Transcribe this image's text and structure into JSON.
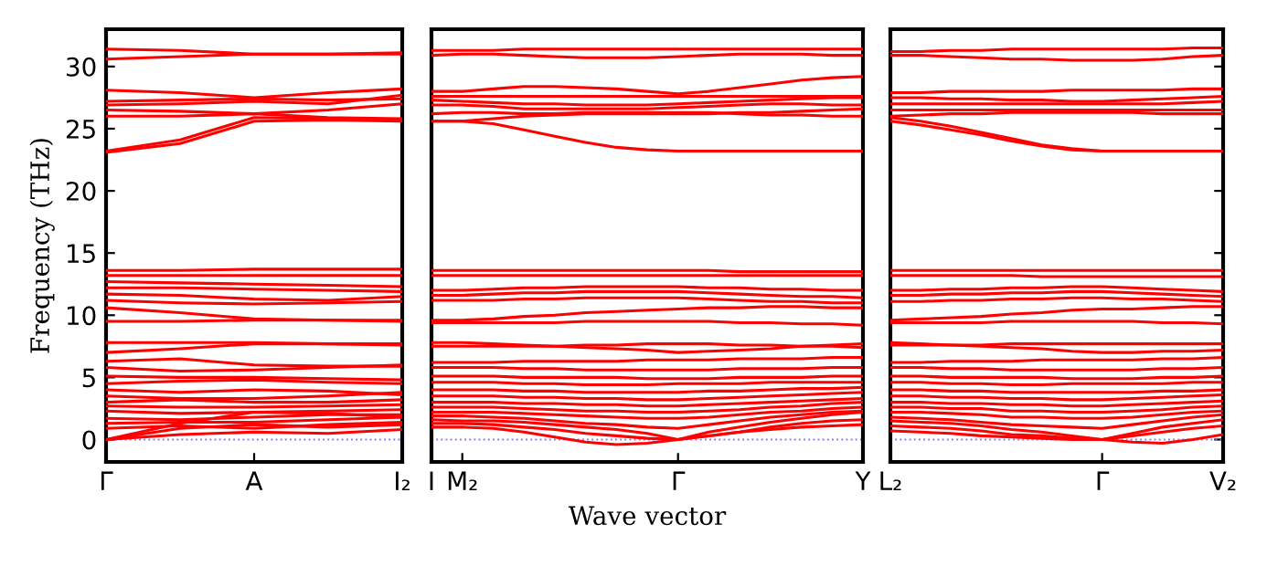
{
  "chart_data": [
    {
      "type": "line",
      "ylabel": "Frequency (THz)",
      "categories": [
        "Γ",
        null,
        "A",
        null,
        "I₂"
      ],
      "ylim": [
        -1.8,
        33
      ],
      "yticks": [
        0,
        5,
        10,
        15,
        20,
        25,
        30
      ],
      "marker": "none",
      "line_style": "solid",
      "ref_lines": [
        {
          "axis": "y",
          "value": 0,
          "color": "#8080ff",
          "line_style": "dotted"
        }
      ],
      "series": [
        {
          "color": "#ff0000",
          "values": [
            31.4,
            31.3,
            31.0,
            31.0,
            31.0
          ]
        },
        {
          "color": "#ff0000",
          "values": [
            30.6,
            30.8,
            31.0,
            31.0,
            31.1
          ]
        },
        {
          "color": "#ff0000",
          "values": [
            28.1,
            27.9,
            27.5,
            27.9,
            28.2
          ]
        },
        {
          "color": "#ff0000",
          "values": [
            27.2,
            27.3,
            27.4,
            27.3,
            27.4
          ]
        },
        {
          "color": "#ff0000",
          "values": [
            26.9,
            27.0,
            27.2,
            27.0,
            27.7
          ]
        },
        {
          "color": "#ff0000",
          "values": [
            26.5,
            26.4,
            26.2,
            26.5,
            27.0
          ]
        },
        {
          "color": "#ff0000",
          "values": [
            26.0,
            26.0,
            26.2,
            25.9,
            25.8
          ]
        },
        {
          "color": "#ff0000",
          "values": [
            23.1,
            23.8,
            25.6,
            25.7,
            25.6
          ]
        },
        {
          "color": "#ff0000",
          "values": [
            23.2,
            24.1,
            25.9,
            25.8,
            25.7
          ]
        },
        {
          "color": "#ff0000",
          "values": [
            13.6,
            13.6,
            13.7,
            13.7,
            13.7
          ]
        },
        {
          "color": "#ff0000",
          "values": [
            13.2,
            13.2,
            13.2,
            13.2,
            13.2
          ]
        },
        {
          "color": "#ff0000",
          "values": [
            12.7,
            12.6,
            12.5,
            12.4,
            12.3
          ]
        },
        {
          "color": "#ff0000",
          "values": [
            12.2,
            12.2,
            12.1,
            12.0,
            11.9
          ]
        },
        {
          "color": "#ff0000",
          "values": [
            11.7,
            11.6,
            11.3,
            11.2,
            11.5
          ]
        },
        {
          "color": "#ff0000",
          "values": [
            11.2,
            11.0,
            10.9,
            11.0,
            11.1
          ]
        },
        {
          "color": "#ff0000",
          "values": [
            10.6,
            10.2,
            9.7,
            9.6,
            9.6
          ]
        },
        {
          "color": "#ff0000",
          "values": [
            9.5,
            9.5,
            9.6,
            9.6,
            9.5
          ]
        },
        {
          "color": "#ff0000",
          "values": [
            7.8,
            7.8,
            7.8,
            7.7,
            7.7
          ]
        },
        {
          "color": "#ff0000",
          "values": [
            7.0,
            7.3,
            7.7,
            7.7,
            7.6
          ]
        },
        {
          "color": "#ff0000",
          "values": [
            6.3,
            6.5,
            6.0,
            5.9,
            5.9
          ]
        },
        {
          "color": "#ff0000",
          "values": [
            5.8,
            5.5,
            5.6,
            5.8,
            6.0
          ]
        },
        {
          "color": "#ff0000",
          "values": [
            5.1,
            5.0,
            5.0,
            4.9,
            4.8
          ]
        },
        {
          "color": "#ff0000",
          "values": [
            4.5,
            4.7,
            4.8,
            4.6,
            4.5
          ]
        },
        {
          "color": "#ff0000",
          "values": [
            4.0,
            3.8,
            4.0,
            3.9,
            3.6
          ]
        },
        {
          "color": "#ff0000",
          "values": [
            3.5,
            3.3,
            3.3,
            3.5,
            3.8
          ]
        },
        {
          "color": "#ff0000",
          "values": [
            3.0,
            3.2,
            3.0,
            3.0,
            3.2
          ]
        },
        {
          "color": "#ff0000",
          "values": [
            2.7,
            2.6,
            2.6,
            2.7,
            2.8
          ]
        },
        {
          "color": "#ff0000",
          "values": [
            2.3,
            2.1,
            2.2,
            2.3,
            2.4
          ]
        },
        {
          "color": "#ff0000",
          "values": [
            1.7,
            1.6,
            1.8,
            2.0,
            2.0
          ]
        },
        {
          "color": "#ff0000",
          "values": [
            1.3,
            1.4,
            1.4,
            1.6,
            1.8
          ]
        },
        {
          "color": "#ff0000",
          "values": [
            0.9,
            1.1,
            0.9,
            1.2,
            1.4
          ]
        },
        {
          "color": "#ff0000",
          "values": [
            0,
            1.3,
            2.2,
            2.1,
            1.8
          ]
        },
        {
          "color": "#ff0000",
          "values": [
            0,
            0.9,
            1.2,
            1.0,
            1.2
          ]
        },
        {
          "color": "#ff0000",
          "values": [
            0,
            0.4,
            0.6,
            0.5,
            0.8
          ]
        }
      ]
    },
    {
      "type": "line",
      "xlabel": "Wave vector",
      "categories": [
        "I",
        "M₂",
        null,
        null,
        null,
        null,
        null,
        null,
        "Γ",
        null,
        null,
        null,
        null,
        null,
        "Y"
      ],
      "ylim": [
        -1.8,
        33
      ],
      "tick_labels": "x",
      "marker": "none",
      "line_style": "solid",
      "ref_lines": [
        {
          "axis": "y",
          "value": 0,
          "color": "#8080ff",
          "line_style": "dotted"
        }
      ],
      "series": [
        {
          "color": "#ff0000",
          "values": [
            31.3,
            31.3,
            31.3,
            31.4,
            31.4,
            31.4,
            31.4,
            31.4,
            31.4,
            31.4,
            31.4,
            31.4,
            31.4,
            31.4,
            31.4
          ]
        },
        {
          "color": "#ff0000",
          "values": [
            30.9,
            31.0,
            31.0,
            30.9,
            30.8,
            30.7,
            30.7,
            30.7,
            30.8,
            30.9,
            31.0,
            31.0,
            31.0,
            30.9,
            30.9
          ]
        },
        {
          "color": "#ff0000",
          "values": [
            28.0,
            28.0,
            28.2,
            28.4,
            28.4,
            28.3,
            28.2,
            28.0,
            27.8,
            28.0,
            28.3,
            28.6,
            28.9,
            29.1,
            29.2
          ]
        },
        {
          "color": "#ff0000",
          "values": [
            27.6,
            27.6,
            27.6,
            27.6,
            27.6,
            27.6,
            27.6,
            27.6,
            27.6,
            27.6,
            27.6,
            27.6,
            27.6,
            27.6,
            27.6
          ]
        },
        {
          "color": "#ff0000",
          "values": [
            27.3,
            27.2,
            27.1,
            27.0,
            27.0,
            26.9,
            26.9,
            26.9,
            27.0,
            27.1,
            27.2,
            27.3,
            27.4,
            27.5,
            27.5
          ]
        },
        {
          "color": "#ff0000",
          "values": [
            26.9,
            26.9,
            26.8,
            26.6,
            26.6,
            26.6,
            26.6,
            26.6,
            26.7,
            26.8,
            26.9,
            27.0,
            27.0,
            26.9,
            26.9
          ]
        },
        {
          "color": "#ff0000",
          "values": [
            26.2,
            26.3,
            26.3,
            26.2,
            26.2,
            26.3,
            26.3,
            26.3,
            26.3,
            26.3,
            26.2,
            26.1,
            26.1,
            26.0,
            26.0
          ]
        },
        {
          "color": "#ff0000",
          "values": [
            25.6,
            25.6,
            25.8,
            26.0,
            26.1,
            26.2,
            26.2,
            26.2,
            26.2,
            26.2,
            26.3,
            26.3,
            26.4,
            26.5,
            26.6
          ]
        },
        {
          "color": "#ff0000",
          "values": [
            25.6,
            25.6,
            25.4,
            24.9,
            24.4,
            23.9,
            23.5,
            23.3,
            23.2,
            23.2,
            23.2,
            23.2,
            23.2,
            23.2,
            23.2
          ]
        },
        {
          "color": "#ff0000",
          "values": [
            13.6,
            13.6,
            13.6,
            13.6,
            13.6,
            13.6,
            13.6,
            13.6,
            13.6,
            13.6,
            13.5,
            13.5,
            13.5,
            13.5,
            13.5
          ]
        },
        {
          "color": "#ff0000",
          "values": [
            13.2,
            13.2,
            13.2,
            13.2,
            13.2,
            13.2,
            13.2,
            13.2,
            13.2,
            13.2,
            13.2,
            13.2,
            13.2,
            13.2,
            13.2
          ]
        },
        {
          "color": "#ff0000",
          "values": [
            12.0,
            12.0,
            12.1,
            12.2,
            12.2,
            12.3,
            12.3,
            12.3,
            12.3,
            12.2,
            12.2,
            12.1,
            12.1,
            12.0,
            12.0
          ]
        },
        {
          "color": "#ff0000",
          "values": [
            11.6,
            11.6,
            11.7,
            11.8,
            11.8,
            11.9,
            11.9,
            11.9,
            11.9,
            11.8,
            11.7,
            11.6,
            11.5,
            11.5,
            11.4
          ]
        },
        {
          "color": "#ff0000",
          "values": [
            11.2,
            11.2,
            11.2,
            11.3,
            11.3,
            11.4,
            11.4,
            11.4,
            11.4,
            11.3,
            11.2,
            11.1,
            11.1,
            11.0,
            11.0
          ]
        },
        {
          "color": "#ff0000",
          "values": [
            9.6,
            9.6,
            9.7,
            9.9,
            10.0,
            10.2,
            10.3,
            10.4,
            10.5,
            10.6,
            10.6,
            10.7,
            10.7,
            10.6,
            10.6
          ]
        },
        {
          "color": "#ff0000",
          "values": [
            9.4,
            9.4,
            9.4,
            9.4,
            9.4,
            9.5,
            9.5,
            9.5,
            9.5,
            9.5,
            9.4,
            9.4,
            9.3,
            9.3,
            9.2
          ]
        },
        {
          "color": "#ff0000",
          "values": [
            7.8,
            7.8,
            7.7,
            7.6,
            7.5,
            7.4,
            7.3,
            7.2,
            7.0,
            7.1,
            7.2,
            7.3,
            7.5,
            7.6,
            7.7
          ]
        },
        {
          "color": "#ff0000",
          "values": [
            7.5,
            7.5,
            7.5,
            7.5,
            7.5,
            7.6,
            7.6,
            7.7,
            7.7,
            7.7,
            7.6,
            7.6,
            7.5,
            7.5,
            7.4
          ]
        },
        {
          "color": "#ff0000",
          "values": [
            6.2,
            6.2,
            6.2,
            6.3,
            6.3,
            6.3,
            6.3,
            6.4,
            6.4,
            6.4,
            6.5,
            6.5,
            6.5,
            6.6,
            6.6
          ]
        },
        {
          "color": "#ff0000",
          "values": [
            5.8,
            5.8,
            5.8,
            5.7,
            5.7,
            5.6,
            5.6,
            5.6,
            5.6,
            5.6,
            5.7,
            5.7,
            5.7,
            5.8,
            5.8
          ]
        },
        {
          "color": "#ff0000",
          "values": [
            5.1,
            5.1,
            5.1,
            5.0,
            5.0,
            5.0,
            5.0,
            4.9,
            4.9,
            4.9,
            5.0,
            5.0,
            5.0,
            5.1,
            5.1
          ]
        },
        {
          "color": "#ff0000",
          "values": [
            4.6,
            4.6,
            4.6,
            4.5,
            4.5,
            4.4,
            4.4,
            4.4,
            4.5,
            4.5,
            4.5,
            4.6,
            4.6,
            4.6,
            4.6
          ]
        },
        {
          "color": "#ff0000",
          "values": [
            4.0,
            4.0,
            4.0,
            3.9,
            3.9,
            3.8,
            3.8,
            3.8,
            3.8,
            3.9,
            3.9,
            4.0,
            4.1,
            4.1,
            4.2
          ]
        },
        {
          "color": "#ff0000",
          "values": [
            3.5,
            3.5,
            3.5,
            3.4,
            3.4,
            3.3,
            3.3,
            3.2,
            3.2,
            3.3,
            3.4,
            3.5,
            3.6,
            3.7,
            3.8
          ]
        },
        {
          "color": "#ff0000",
          "values": [
            3.0,
            3.0,
            3.0,
            2.9,
            2.9,
            2.8,
            2.8,
            2.7,
            2.7,
            2.8,
            2.9,
            3.0,
            3.1,
            3.2,
            3.3
          ]
        },
        {
          "color": "#ff0000",
          "values": [
            2.6,
            2.6,
            2.6,
            2.5,
            2.4,
            2.3,
            2.3,
            2.2,
            2.2,
            2.3,
            2.4,
            2.6,
            2.7,
            2.9,
            3.0
          ]
        },
        {
          "color": "#ff0000",
          "values": [
            2.2,
            2.2,
            2.2,
            2.1,
            2.0,
            1.9,
            1.8,
            1.7,
            1.7,
            1.8,
            2.0,
            2.2,
            2.3,
            2.5,
            2.6
          ]
        },
        {
          "color": "#ff0000",
          "values": [
            1.9,
            1.9,
            1.8,
            1.7,
            1.5,
            1.3,
            1.2,
            1.0,
            0.9,
            1.2,
            1.5,
            1.8,
            2.0,
            2.2,
            2.3
          ]
        },
        {
          "color": "#ff0000",
          "values": [
            1.6,
            1.5,
            1.5,
            1.4,
            1.2,
            1.0,
            0.8,
            0.5,
            0.0,
            0.6,
            1.0,
            1.4,
            1.7,
            2.0,
            2.2
          ]
        },
        {
          "color": "#ff0000",
          "values": [
            1.3,
            1.3,
            1.2,
            1.0,
            0.8,
            0.5,
            0.3,
            0.1,
            0.0,
            0.3,
            0.6,
            0.8,
            1.0,
            1.1,
            1.2
          ]
        },
        {
          "color": "#ff0000",
          "values": [
            1.0,
            1.0,
            0.9,
            0.6,
            0.2,
            -0.2,
            -0.4,
            -0.3,
            0.0,
            0.3,
            0.6,
            1.0,
            1.3,
            1.5,
            1.6
          ]
        }
      ]
    },
    {
      "type": "line",
      "categories": [
        "L₂",
        null,
        null,
        null,
        null,
        null,
        null,
        "Γ",
        null,
        null,
        null,
        "V₂"
      ],
      "ylim": [
        -1.8,
        33
      ],
      "tick_labels": "x",
      "marker": "none",
      "line_style": "solid",
      "ref_lines": [
        {
          "axis": "y",
          "value": 0,
          "color": "#8080ff",
          "line_style": "dotted"
        }
      ],
      "series": [
        {
          "color": "#ff0000",
          "values": [
            31.2,
            31.2,
            31.3,
            31.3,
            31.4,
            31.4,
            31.4,
            31.4,
            31.4,
            31.4,
            31.5,
            31.5
          ]
        },
        {
          "color": "#ff0000",
          "values": [
            30.9,
            30.9,
            30.8,
            30.7,
            30.6,
            30.6,
            30.5,
            30.5,
            30.5,
            30.6,
            30.8,
            30.9
          ]
        },
        {
          "color": "#ff0000",
          "values": [
            27.9,
            27.9,
            28.0,
            28.0,
            28.0,
            28.0,
            28.1,
            28.1,
            28.1,
            28.1,
            28.2,
            28.2
          ]
        },
        {
          "color": "#ff0000",
          "values": [
            27.5,
            27.5,
            27.4,
            27.4,
            27.3,
            27.3,
            27.2,
            27.2,
            27.3,
            27.4,
            27.5,
            27.6
          ]
        },
        {
          "color": "#ff0000",
          "values": [
            27.0,
            27.0,
            27.0,
            27.0,
            27.0,
            27.0,
            27.0,
            27.0,
            27.0,
            27.0,
            27.1,
            27.2
          ]
        },
        {
          "color": "#ff0000",
          "values": [
            26.5,
            26.5,
            26.5,
            26.5,
            26.5,
            26.5,
            26.5,
            26.5,
            26.5,
            26.5,
            26.5,
            26.5
          ]
        },
        {
          "color": "#ff0000",
          "values": [
            26.0,
            26.1,
            26.2,
            26.2,
            26.3,
            26.3,
            26.3,
            26.3,
            26.3,
            26.2,
            26.2,
            26.2
          ]
        },
        {
          "color": "#ff0000",
          "values": [
            25.9,
            25.6,
            25.2,
            24.7,
            24.2,
            23.7,
            23.4,
            23.2,
            23.2,
            23.2,
            23.2,
            23.2
          ]
        },
        {
          "color": "#ff0000",
          "values": [
            25.6,
            25.3,
            24.9,
            24.5,
            24.0,
            23.6,
            23.3,
            23.2,
            23.2,
            23.2,
            23.2,
            23.2
          ]
        },
        {
          "color": "#ff0000",
          "values": [
            13.6,
            13.6,
            13.6,
            13.6,
            13.6,
            13.6,
            13.6,
            13.6,
            13.6,
            13.6,
            13.6,
            13.6
          ]
        },
        {
          "color": "#ff0000",
          "values": [
            13.2,
            13.2,
            13.2,
            13.2,
            13.2,
            13.1,
            13.1,
            13.1,
            13.1,
            13.1,
            13.1,
            13.1
          ]
        },
        {
          "color": "#ff0000",
          "values": [
            12.0,
            12.0,
            12.1,
            12.1,
            12.2,
            12.2,
            12.3,
            12.3,
            12.2,
            12.1,
            12.0,
            11.9
          ]
        },
        {
          "color": "#ff0000",
          "values": [
            11.6,
            11.6,
            11.7,
            11.7,
            11.8,
            11.8,
            11.9,
            11.9,
            11.8,
            11.7,
            11.6,
            11.5
          ]
        },
        {
          "color": "#ff0000",
          "values": [
            11.1,
            11.1,
            11.2,
            11.2,
            11.3,
            11.3,
            11.4,
            11.4,
            11.3,
            11.3,
            11.2,
            11.1
          ]
        },
        {
          "color": "#ff0000",
          "values": [
            9.6,
            9.7,
            9.8,
            9.9,
            10.1,
            10.2,
            10.4,
            10.5,
            10.5,
            10.6,
            10.7,
            10.7
          ]
        },
        {
          "color": "#ff0000",
          "values": [
            9.4,
            9.4,
            9.4,
            9.4,
            9.5,
            9.5,
            9.5,
            9.5,
            9.5,
            9.4,
            9.4,
            9.3
          ]
        },
        {
          "color": "#ff0000",
          "values": [
            7.8,
            7.7,
            7.6,
            7.5,
            7.4,
            7.3,
            7.1,
            7.0,
            7.0,
            7.1,
            7.1,
            7.2
          ]
        },
        {
          "color": "#ff0000",
          "values": [
            7.6,
            7.6,
            7.6,
            7.6,
            7.7,
            7.7,
            7.7,
            7.7,
            7.7,
            7.7,
            7.7,
            7.7
          ]
        },
        {
          "color": "#ff0000",
          "values": [
            6.2,
            6.2,
            6.3,
            6.3,
            6.3,
            6.4,
            6.4,
            6.4,
            6.4,
            6.5,
            6.5,
            6.6
          ]
        },
        {
          "color": "#ff0000",
          "values": [
            5.8,
            5.8,
            5.7,
            5.7,
            5.6,
            5.6,
            5.6,
            5.6,
            5.6,
            5.7,
            5.7,
            5.8
          ]
        },
        {
          "color": "#ff0000",
          "values": [
            5.1,
            5.1,
            5.0,
            5.0,
            5.0,
            5.0,
            4.9,
            4.9,
            4.9,
            5.0,
            5.0,
            5.1
          ]
        },
        {
          "color": "#ff0000",
          "values": [
            4.6,
            4.6,
            4.5,
            4.5,
            4.4,
            4.4,
            4.5,
            4.5,
            4.5,
            4.5,
            4.6,
            4.6
          ]
        },
        {
          "color": "#ff0000",
          "values": [
            4.0,
            4.0,
            3.9,
            3.9,
            3.8,
            3.8,
            3.8,
            3.8,
            3.8,
            3.9,
            3.9,
            4.0
          ]
        },
        {
          "color": "#ff0000",
          "values": [
            3.5,
            3.5,
            3.4,
            3.4,
            3.3,
            3.3,
            3.2,
            3.2,
            3.3,
            3.4,
            3.5,
            3.6
          ]
        },
        {
          "color": "#ff0000",
          "values": [
            3.0,
            3.0,
            2.9,
            2.9,
            2.8,
            2.8,
            2.7,
            2.7,
            2.8,
            2.9,
            3.0,
            3.1
          ]
        },
        {
          "color": "#ff0000",
          "values": [
            2.6,
            2.6,
            2.5,
            2.5,
            2.3,
            2.3,
            2.2,
            2.2,
            2.3,
            2.4,
            2.6,
            2.7
          ]
        },
        {
          "color": "#ff0000",
          "values": [
            2.2,
            2.2,
            2.1,
            2.0,
            1.8,
            1.8,
            1.7,
            1.7,
            1.8,
            2.0,
            2.2,
            2.3
          ]
        },
        {
          "color": "#ff0000",
          "values": [
            1.8,
            1.7,
            1.6,
            1.4,
            1.2,
            1.1,
            1.0,
            0.9,
            1.2,
            1.5,
            1.8,
            2.0
          ]
        },
        {
          "color": "#ff0000",
          "values": [
            1.5,
            1.4,
            1.3,
            1.1,
            0.8,
            0.6,
            0.3,
            0.0,
            0.5,
            1.0,
            1.3,
            1.6
          ]
        },
        {
          "color": "#ff0000",
          "values": [
            1.1,
            1.0,
            0.9,
            0.7,
            0.4,
            0.3,
            0.1,
            0.0,
            0.3,
            0.6,
            0.9,
            1.1
          ]
        },
        {
          "color": "#ff0000",
          "values": [
            0.7,
            0.6,
            0.5,
            0.3,
            0.2,
            0.1,
            0.0,
            0.0,
            -0.2,
            -0.3,
            0.0,
            0.4
          ]
        }
      ]
    }
  ]
}
